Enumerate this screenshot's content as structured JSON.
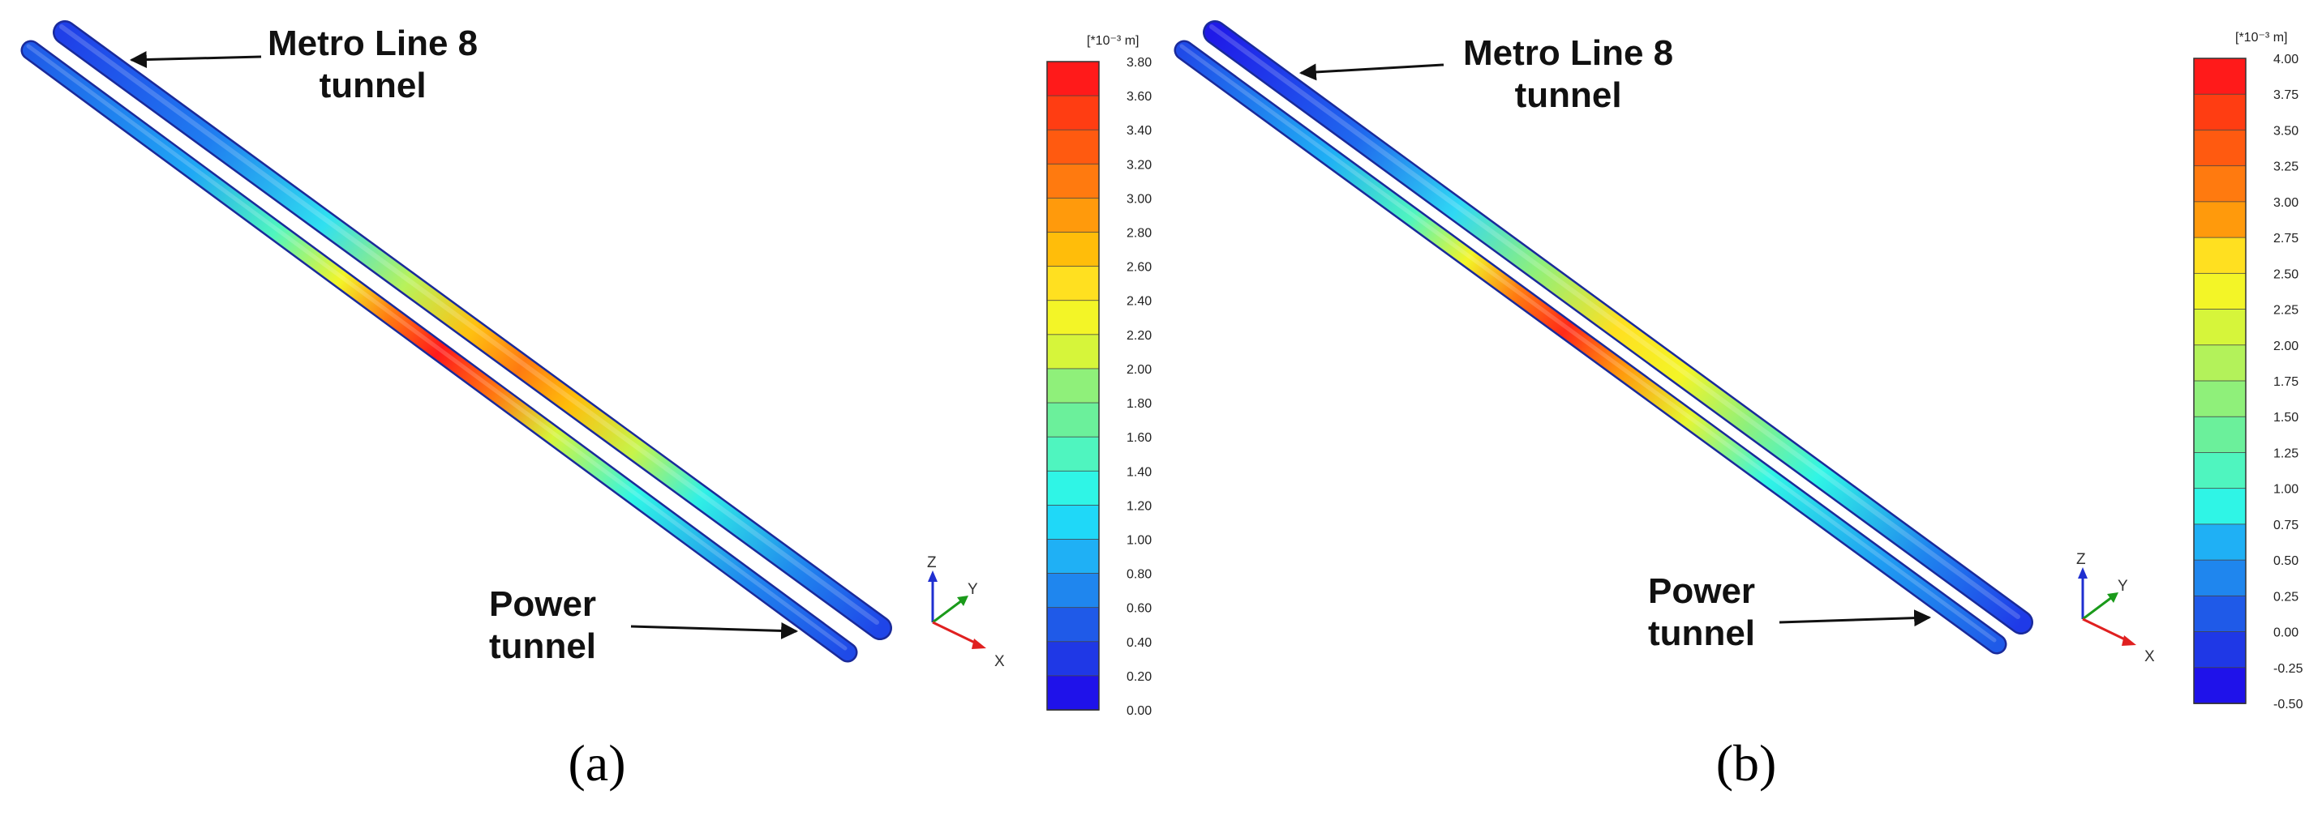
{
  "panels": [
    {
      "label": "(a)",
      "metro_label_line1": "Metro Line 8",
      "metro_label_line2": "tunnel",
      "power_label_line1": "Power",
      "power_label_line2": "tunnel",
      "colorbar": {
        "unit": "[*10⁻³ m]",
        "ticks": [
          "3.80",
          "3.60",
          "3.40",
          "3.20",
          "3.00",
          "2.80",
          "2.60",
          "2.40",
          "2.20",
          "2.00",
          "1.80",
          "1.60",
          "1.40",
          "1.20",
          "1.00",
          "0.80",
          "0.60",
          "0.40",
          "0.20",
          "0.00"
        ]
      },
      "axes": {
        "z": "Z",
        "y": "Y",
        "x": "X"
      }
    },
    {
      "label": "(b)",
      "metro_label_line1": "Metro Line 8",
      "metro_label_line2": "tunnel",
      "power_label_line1": "Power",
      "power_label_line2": "tunnel",
      "colorbar": {
        "unit": "[*10⁻³ m]",
        "ticks": [
          "4.00",
          "3.75",
          "3.50",
          "3.25",
          "3.00",
          "2.75",
          "2.50",
          "2.25",
          "2.00",
          "1.75",
          "1.50",
          "1.25",
          "1.00",
          "0.75",
          "0.50",
          "0.25",
          "0.00",
          "-0.25",
          "-0.50"
        ]
      },
      "axes": {
        "z": "Z",
        "y": "Y",
        "x": "X"
      }
    }
  ],
  "colors": {
    "colorbar_top_to_bottom": [
      "#ff1a1a",
      "#ff3d12",
      "#ff5a10",
      "#ff7a0f",
      "#ff9a0c",
      "#ffbd0a",
      "#ffe020",
      "#f3f527",
      "#d6f53a",
      "#b3f25a",
      "#8ff07a",
      "#6bf09b",
      "#4ff5bf",
      "#2ff5e6",
      "#1fd8f8",
      "#1fb0f5",
      "#1f86ee",
      "#1f5ae8",
      "#1f38e6",
      "#1f12ea"
    ],
    "axis_z": "#1f2fd0",
    "axis_y": "#1a9a1a",
    "axis_x": "#e02020"
  }
}
